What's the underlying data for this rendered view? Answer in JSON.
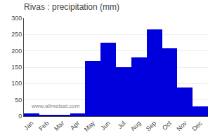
{
  "chart_data": {
    "type": "bar",
    "title": "Rivas : precipitation (mm)",
    "categories": [
      "Jan",
      "Feb",
      "Mar",
      "Apr",
      "May",
      "Jun",
      "Jul",
      "Aug",
      "Sep",
      "Oct",
      "Nov",
      "Dec"
    ],
    "values": [
      8,
      5,
      5,
      8,
      170,
      225,
      150,
      180,
      265,
      208,
      87,
      30
    ],
    "color": "#0000DD",
    "ylim": [
      0,
      300
    ],
    "yticks": [
      0,
      50,
      100,
      150,
      200,
      250,
      300
    ],
    "grid": true,
    "annotations": [
      "www.allmetsat.com"
    ]
  }
}
